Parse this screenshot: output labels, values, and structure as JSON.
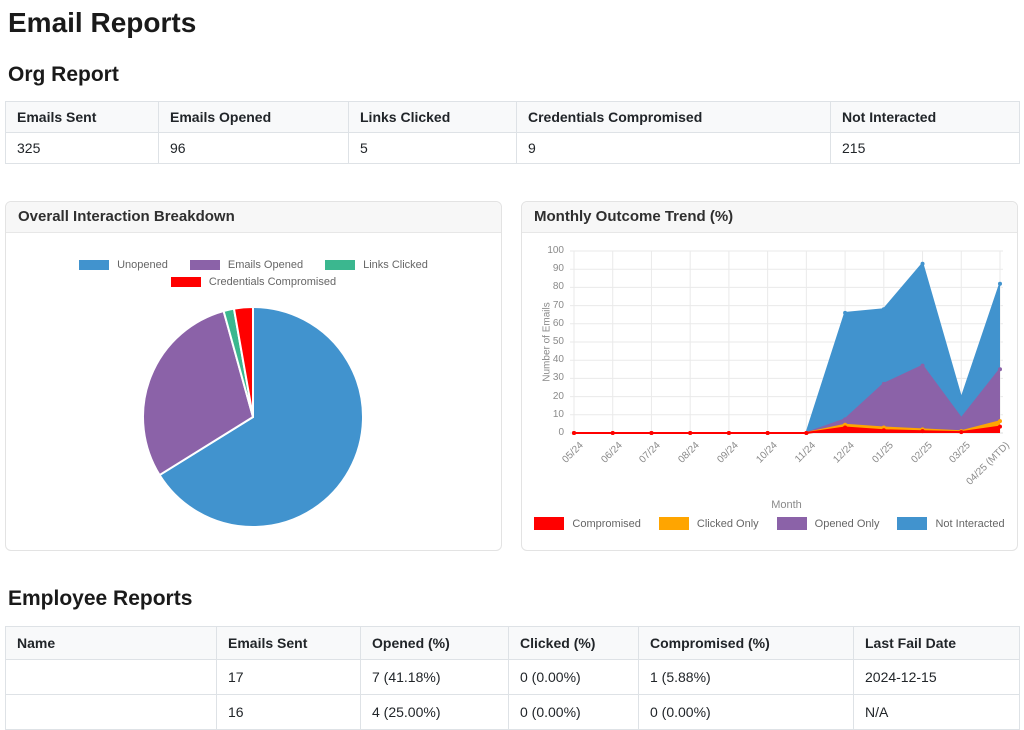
{
  "page": {
    "title": "Email Reports"
  },
  "org_report": {
    "heading": "Org Report",
    "table": {
      "headers": [
        "Emails Sent",
        "Emails Opened",
        "Links Clicked",
        "Credentials Compromised",
        "Not Interacted"
      ],
      "row": [
        "325",
        "96",
        "5",
        "9",
        "215"
      ]
    }
  },
  "panels": {
    "pie_title": "Overall Interaction Breakdown",
    "trend_title": "Monthly Outcome Trend (%)"
  },
  "chart_data": [
    {
      "type": "pie",
      "title": "Overall Interaction Breakdown",
      "labels": [
        "Unopened",
        "Emails Opened",
        "Links Clicked",
        "Credentials Compromised"
      ],
      "values": [
        215,
        96,
        5,
        9
      ],
      "colors": [
        "#4193ce",
        "#8b62a8",
        "#3bb78f",
        "#ff0000"
      ],
      "legend_position": "top",
      "start_angle_deg": -90,
      "direction": "clockwise"
    },
    {
      "type": "area",
      "stacked": true,
      "title": "Monthly Outcome Trend (%)",
      "categories": [
        "05/24",
        "06/24",
        "07/24",
        "08/24",
        "09/24",
        "10/24",
        "11/24",
        "12/24",
        "01/25",
        "02/25",
        "03/25",
        "04/25 (MTD)"
      ],
      "series": [
        {
          "name": "Compromised",
          "color": "#ff0000",
          "values": [
            0,
            0,
            0,
            0,
            0,
            0,
            0,
            3,
            1.5,
            1,
            0.5,
            3.5
          ]
        },
        {
          "name": "Clicked Only",
          "color": "#ffa500",
          "values": [
            0,
            0,
            0,
            0,
            0,
            0,
            0,
            1.5,
            1.5,
            1,
            0.5,
            3
          ]
        },
        {
          "name": "Opened Only",
          "color": "#8b62a8",
          "values": [
            0,
            0,
            0,
            0,
            0,
            0,
            0,
            3,
            24,
            35,
            7,
            28.5
          ]
        },
        {
          "name": "Not Interacted",
          "color": "#4193ce",
          "values": [
            0,
            0,
            0,
            0,
            0,
            0,
            0,
            58.5,
            41,
            56,
            11,
            47
          ]
        }
      ],
      "xlabel": "Month",
      "ylabel": "Number of Emails",
      "ylim": [
        0,
        100
      ],
      "ytick_step": 10,
      "grid": true,
      "legend_position": "bottom"
    }
  ],
  "employee_reports": {
    "heading": "Employee Reports",
    "table": {
      "headers": [
        "Name",
        "Emails Sent",
        "Opened (%)",
        "Clicked (%)",
        "Compromised (%)",
        "Last Fail Date"
      ],
      "rows": [
        [
          "",
          "17",
          "7 (41.18%)",
          "0 (0.00%)",
          "1 (5.88%)",
          "2024-12-15"
        ],
        [
          "",
          "16",
          "4 (25.00%)",
          "0 (0.00%)",
          "0 (0.00%)",
          "N/A"
        ]
      ]
    }
  }
}
